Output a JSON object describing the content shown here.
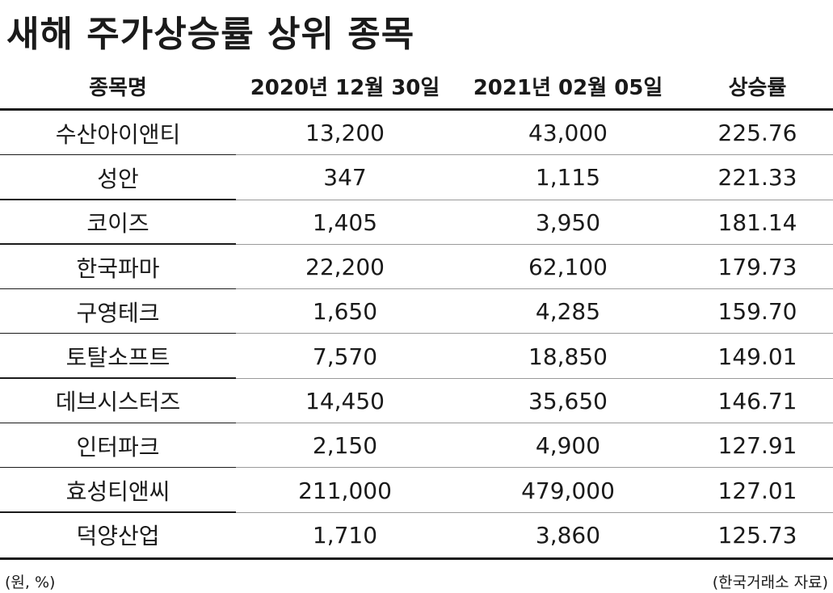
{
  "title": "새해 주가상승률 상위 종목",
  "table": {
    "headers": [
      "종목명",
      "2020년 12월 30일",
      "2021년 02월 05일",
      "상승률"
    ],
    "rows": [
      [
        "수산아이앤티",
        "13,200",
        "43,000",
        "225.76"
      ],
      [
        "성안",
        "347",
        "1,115",
        "221.33"
      ],
      [
        "코이즈",
        "1,405",
        "3,950",
        "181.14"
      ],
      [
        "한국파마",
        "22,200",
        "62,100",
        "179.73"
      ],
      [
        "구영테크",
        "1,650",
        "4,285",
        "159.70"
      ],
      [
        "토탈소프트",
        "7,570",
        "18,850",
        "149.01"
      ],
      [
        "데브시스터즈",
        "14,450",
        "35,650",
        "146.71"
      ],
      [
        "인터파크",
        "2,150",
        "4,900",
        "127.91"
      ],
      [
        "효성티앤씨",
        "211,000",
        "479,000",
        "127.01"
      ],
      [
        "덕양산업",
        "1,710",
        "3,860",
        "125.73"
      ]
    ]
  },
  "footer": {
    "unit": "(원, %)",
    "source": "(한국거래소 자료)"
  }
}
